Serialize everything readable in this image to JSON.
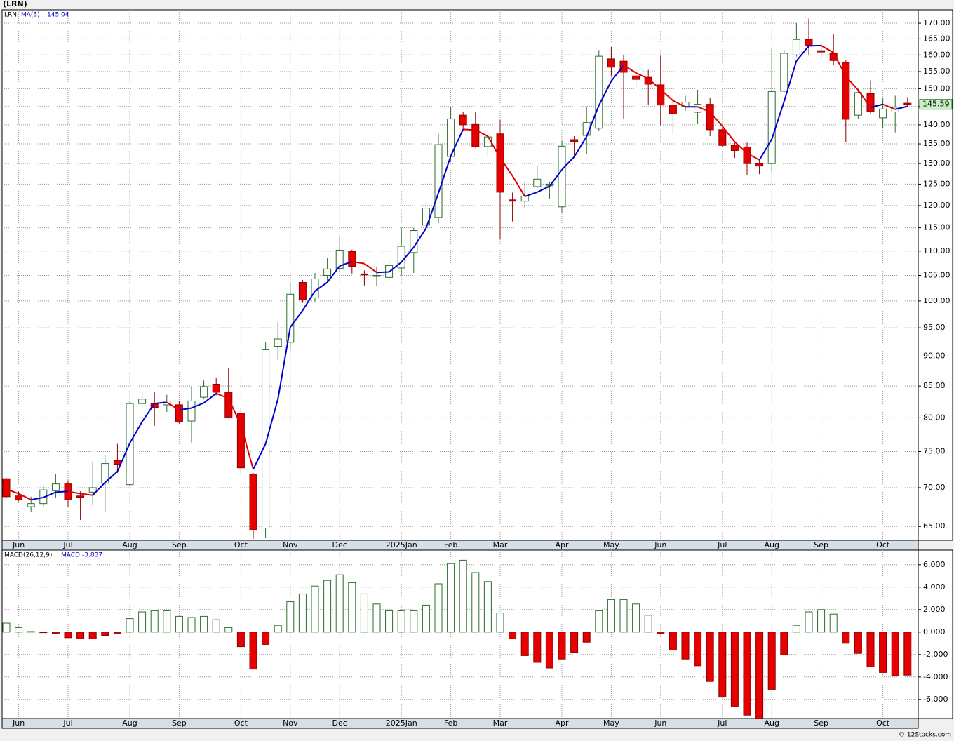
{
  "chart_data": [
    {
      "type": "candlestick",
      "title": "(LRN)",
      "legend_label": "LRN",
      "log_scale": true,
      "grid": true,
      "up_color": "#2b6e2b",
      "down_color": "#e60000",
      "categories": [
        null,
        "Jun",
        null,
        null,
        null,
        "Jul",
        null,
        null,
        null,
        null,
        "Aug",
        null,
        null,
        null,
        "Sep",
        null,
        null,
        null,
        null,
        "Oct",
        null,
        null,
        null,
        "Nov",
        null,
        null,
        null,
        "Dec",
        null,
        null,
        null,
        null,
        "2025Jan",
        null,
        null,
        null,
        "Feb",
        null,
        null,
        null,
        "Mar",
        null,
        null,
        null,
        null,
        "Apr",
        null,
        null,
        null,
        "May",
        null,
        null,
        null,
        "Jun",
        null,
        null,
        null,
        null,
        "Jul",
        null,
        null,
        null,
        "Aug",
        null,
        null,
        null,
        "Sep",
        null,
        null,
        null,
        null,
        "Oct",
        null,
        null
      ],
      "open": [
        71.2,
        68.9,
        67.5,
        67.9,
        69.6,
        70.5,
        68.9,
        69.4,
        70.6,
        73.7,
        70.4,
        82.2,
        82.2,
        82,
        82,
        79.5,
        83.2,
        85.3,
        84,
        80.7,
        71.8,
        64.8,
        91.7,
        92.4,
        103.6,
        100.6,
        105,
        106.4,
        109.9,
        105.3,
        104.8,
        104.6,
        106.5,
        109.7,
        115.6,
        117.3,
        131.8,
        142.6,
        140.1,
        134.3,
        137.6,
        121.3,
        121,
        124.4,
        124.6,
        119.7,
        136.1,
        137.2,
        139.1,
        158.8,
        158.1,
        153.7,
        153.3,
        151.1,
        145.4,
        145,
        143.4,
        145.6,
        138.7,
        134.6,
        134.2,
        130,
        130,
        149.3,
        160,
        164.8,
        161.3,
        160.4,
        157.7,
        142.6,
        148.6,
        141.9,
        143.5,
        145.9
      ],
      "high": [
        71.3,
        69.5,
        68.8,
        70.2,
        71.8,
        71,
        69.5,
        73.5,
        74.5,
        76.1,
        82.5,
        84.1,
        84.1,
        83.6,
        82.6,
        85,
        85.9,
        86.3,
        88,
        81.5,
        72,
        92.4,
        96,
        103.5,
        104.1,
        105.5,
        108.5,
        113,
        110.3,
        106,
        106.8,
        108,
        115,
        115,
        120.5,
        137.6,
        145,
        143.5,
        143.6,
        137,
        141.3,
        123,
        125.6,
        129.4,
        125.6,
        135.8,
        137,
        145,
        161.5,
        162.5,
        160,
        154.3,
        155.5,
        159.8,
        147.6,
        148,
        149.7,
        147.5,
        139.3,
        135.2,
        135.3,
        131,
        162,
        161.5,
        170,
        171.5,
        164,
        166.5,
        158.5,
        150,
        152.4,
        147.4,
        148,
        147.6
      ],
      "low": [
        68.6,
        68.2,
        66.8,
        67.5,
        68.6,
        67.4,
        65.8,
        67.7,
        66.8,
        72,
        70.2,
        81.8,
        78.8,
        80.9,
        79.1,
        76.3,
        83,
        83.5,
        79.9,
        71.9,
        63.5,
        63.6,
        89.3,
        91,
        99.6,
        99.7,
        103.5,
        105.8,
        105.4,
        103,
        102.9,
        104,
        105,
        105.5,
        114.8,
        116,
        130.5,
        138.5,
        134,
        131.6,
        112.5,
        116.4,
        119.5,
        124,
        121.5,
        118.3,
        131.7,
        132.4,
        138.4,
        153.5,
        141.5,
        150.5,
        145.4,
        139.8,
        137.5,
        143.8,
        140.2,
        137,
        134.2,
        131.4,
        127.2,
        127.4,
        128,
        149,
        159.5,
        160,
        159,
        157,
        135.5,
        141.6,
        143,
        139,
        138,
        144.8
      ],
      "close": [
        68.8,
        68.4,
        67.9,
        69.7,
        70.5,
        68.4,
        68.7,
        70,
        73.3,
        73.2,
        82.2,
        82.9,
        81.6,
        82.6,
        79.4,
        82.6,
        84.9,
        84,
        80.1,
        72.7,
        64.6,
        91.1,
        93,
        101.3,
        100.2,
        104.3,
        106.3,
        110.2,
        106.8,
        105.1,
        105,
        107,
        111,
        114.4,
        119.4,
        134.8,
        141.6,
        140,
        134.3,
        136.8,
        123.1,
        121,
        122.2,
        126.2,
        125,
        134.4,
        135.6,
        140.6,
        159.6,
        156.3,
        154.8,
        152.7,
        151.3,
        145.4,
        143,
        146.2,
        145.6,
        138.7,
        134.6,
        133.3,
        130,
        129.4,
        149.2,
        160.5,
        164.8,
        163,
        160.9,
        158.3,
        141.5,
        148.9,
        143.6,
        144.3,
        144.8,
        145.59
      ],
      "ma": {
        "name": "MA(3)",
        "rising_color": "#0000cc",
        "falling_color": "#e00000",
        "values": [
          69.8,
          69.2,
          68.4,
          68.7,
          69.4,
          69.5,
          69.2,
          69.0,
          70.7,
          72.2,
          76.2,
          79.4,
          82.2,
          82.4,
          81.2,
          81.5,
          82.3,
          83.8,
          83.0,
          78.9,
          72.5,
          76.1,
          82.9,
          95.1,
          98.2,
          101.9,
          103.6,
          106.9,
          107.8,
          107.4,
          105.6,
          105.7,
          107.7,
          110.8,
          114.9,
          122.9,
          131.9,
          138.8,
          138.6,
          137.0,
          131.4,
          127.0,
          122.1,
          123.1,
          124.5,
          128.5,
          131.7,
          136.9,
          145.3,
          152.2,
          156.9,
          154.6,
          152.9,
          149.8,
          146.6,
          144.9,
          144.9,
          143.5,
          139.6,
          135.5,
          132.6,
          130.9,
          136.2,
          146.4,
          158.2,
          162.8,
          162.9,
          160.7,
          153.6,
          149.6,
          144.7,
          145.6,
          144.2,
          145.04
        ]
      },
      "ylim": [
        63.3,
        174.4
      ],
      "yticks": [
        {
          "value": 65,
          "label": "65.00"
        },
        {
          "value": 70,
          "label": "70.00"
        },
        {
          "value": 75,
          "label": "75.00"
        },
        {
          "value": 80,
          "label": "80.00"
        },
        {
          "value": 85,
          "label": "85.00"
        },
        {
          "value": 90,
          "label": "90.00"
        },
        {
          "value": 95,
          "label": "95.00"
        },
        {
          "value": 100,
          "label": "100.00"
        },
        {
          "value": 105,
          "label": "105.00"
        },
        {
          "value": 110,
          "label": "110.00"
        },
        {
          "value": 115,
          "label": "115.00"
        },
        {
          "value": 120,
          "label": "120.00"
        },
        {
          "value": 125,
          "label": "125.00"
        },
        {
          "value": 130,
          "label": "130.00"
        },
        {
          "value": 135,
          "label": "135.00"
        },
        {
          "value": 140,
          "label": "140.00"
        },
        {
          "value": 145,
          "label": "145.00"
        },
        {
          "value": 150,
          "label": "150.00"
        },
        {
          "value": 155,
          "label": "155.00"
        },
        {
          "value": 160,
          "label": "160.00"
        },
        {
          "value": 165,
          "label": "165.00"
        },
        {
          "value": 170,
          "label": "170.00"
        }
      ]
    },
    {
      "type": "bar",
      "positive_color": "#2b6e2b",
      "negative_color": "#e60000",
      "grid": true,
      "categories": [
        null,
        "Jun",
        null,
        null,
        null,
        "Jul",
        null,
        null,
        null,
        null,
        "Aug",
        null,
        null,
        null,
        "Sep",
        null,
        null,
        null,
        null,
        "Oct",
        null,
        null,
        null,
        "Nov",
        null,
        null,
        null,
        "Dec",
        null,
        null,
        null,
        null,
        "2025Jan",
        null,
        null,
        null,
        "Feb",
        null,
        null,
        null,
        "Mar",
        null,
        null,
        null,
        null,
        "Apr",
        null,
        null,
        null,
        "May",
        null,
        null,
        null,
        "Jun",
        null,
        null,
        null,
        null,
        "Jul",
        null,
        null,
        null,
        "Aug",
        null,
        null,
        null,
        "Sep",
        null,
        null,
        null,
        null,
        "Oct",
        null,
        null
      ],
      "series": [
        {
          "name": "MACD(26,12,9)",
          "values": [
            0.8,
            0.4,
            0.05,
            -0.05,
            -0.1,
            -0.5,
            -0.6,
            -0.6,
            -0.3,
            -0.1,
            1.2,
            1.8,
            1.9,
            1.9,
            1.4,
            1.3,
            1.4,
            1.1,
            0.4,
            -1.3,
            -3.3,
            -1.1,
            0.6,
            2.7,
            3.4,
            4.1,
            4.6,
            5.1,
            4.4,
            3.4,
            2.5,
            1.9,
            1.9,
            1.9,
            2.4,
            4.3,
            6.1,
            6.4,
            5.3,
            4.5,
            1.7,
            -0.6,
            -2.1,
            -2.7,
            -3.2,
            -2.4,
            -1.8,
            -0.9,
            1.9,
            2.9,
            2.9,
            2.5,
            1.5,
            -0.1,
            -1.6,
            -2.4,
            -3.0,
            -4.4,
            -5.8,
            -6.6,
            -7.4,
            -7.7,
            -5.1,
            -2.0,
            0.6,
            1.8,
            2.0,
            1.6,
            -1.0,
            -1.9,
            -3.1,
            -3.6,
            -3.9,
            -3.837
          ],
          "value_labels": [
            null,
            null,
            null,
            null,
            null,
            null,
            null,
            null,
            null,
            null,
            null,
            null,
            null,
            null,
            null,
            null,
            null,
            null,
            null,
            null,
            null,
            null,
            null,
            null,
            null,
            null,
            null,
            null,
            null,
            null,
            null,
            null,
            null,
            null,
            null,
            null,
            null,
            null,
            null,
            null,
            null,
            null,
            null,
            null,
            null,
            null,
            null,
            null,
            null,
            null,
            null,
            null,
            null,
            null,
            null,
            null,
            null,
            null,
            null,
            null,
            null,
            null,
            null,
            null,
            null,
            null,
            null,
            null,
            null,
            null,
            null,
            null,
            null,
            "MACD:-3.837"
          ]
        }
      ],
      "ylim": [
        -7.7,
        7.3
      ],
      "yticks": [
        {
          "value": 6,
          "label": "6.000"
        },
        {
          "value": 4,
          "label": "4.000"
        },
        {
          "value": 2,
          "label": "2.000"
        },
        {
          "value": 0,
          "label": "0.000"
        },
        {
          "value": -2,
          "label": "-2.000"
        },
        {
          "value": -4,
          "label": "-4.000"
        },
        {
          "value": -6,
          "label": "-6.000"
        }
      ]
    }
  ],
  "footer": "© 12Stocks.com"
}
